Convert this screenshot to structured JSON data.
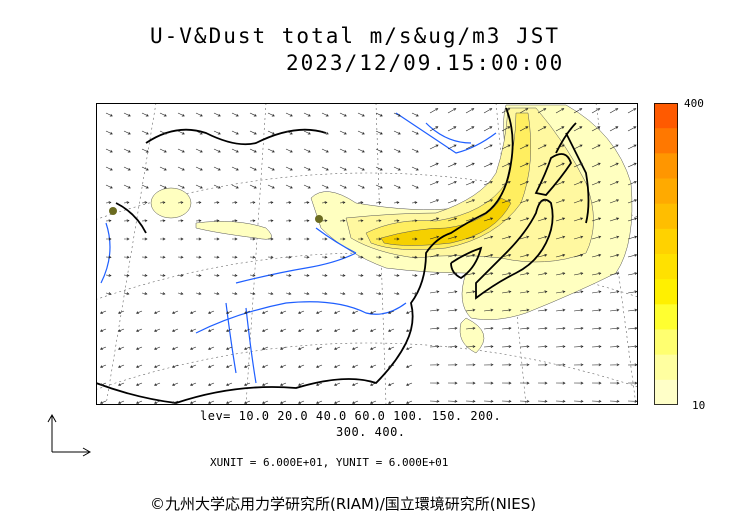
{
  "header": {
    "title": "U-V&Dust total m/s&ug/m3 JST",
    "datetime": "2023/12/09.15:00:00"
  },
  "colorbar": {
    "max_label": "400",
    "min_label": "10",
    "colors": [
      "#ff5a00",
      "#ff7800",
      "#ff9600",
      "#ffaa00",
      "#ffbe00",
      "#ffd200",
      "#ffe100",
      "#fff000",
      "#ffff30",
      "#ffff70",
      "#ffffa0",
      "#ffffc8"
    ]
  },
  "legend": {
    "levels_line1": "lev= 10.0 20.0 40.0 60.0 100. 150. 200.",
    "levels_line2": "300. 400.",
    "units": "XUNIT = 6.000E+01, YUNIT = 6.000E+01"
  },
  "footer": {
    "credit": "©九州大学応用力学研究所(RIAM)/国立環境研究所(NIES)"
  },
  "map": {
    "coast_color": "#000000",
    "river_color": "#1f5fff",
    "dust_light": "#ffffc0",
    "dust_mid": "#ffee60",
    "dust_dense": "#f5d000"
  }
}
